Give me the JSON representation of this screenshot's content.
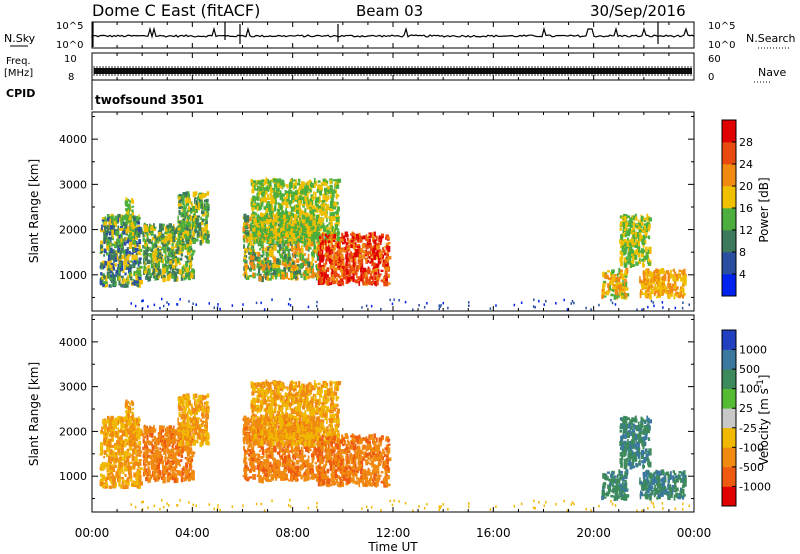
{
  "header": {
    "title": "Dome C East (fitACF)",
    "beam": "Beam 03",
    "date": "30/Sep/2016"
  },
  "side_labels": {
    "nsky": "N.Sky",
    "nsearch": "N.Search",
    "freq_line1": "Freq.",
    "freq_line2": "[MHz]",
    "nave": "Nave",
    "cpid": "CPID",
    "cpid_value": "twofsound 3501"
  },
  "noise_axis": {
    "top": "10^5",
    "bottom": "10^0"
  },
  "freq_axis": {
    "top": "10",
    "bottom": "8"
  },
  "nave_axis": {
    "top": "60",
    "bottom": "0"
  },
  "x_axis": {
    "label": "Time UT",
    "ticks": [
      "00:00",
      "04:00",
      "08:00",
      "12:00",
      "16:00",
      "20:00",
      "00:00"
    ],
    "tick_hours": [
      0,
      4,
      8,
      12,
      16,
      20,
      24
    ],
    "range": [
      0,
      24
    ]
  },
  "y_axis": {
    "label": "Slant Range [km]",
    "ticks": [
      "1000",
      "2000",
      "3000",
      "4000"
    ],
    "tick_values": [
      1000,
      2000,
      3000,
      4000
    ],
    "range": [
      200,
      4600
    ]
  },
  "power_scale": {
    "label": "Power [dB]",
    "ticks": [
      "4",
      "8",
      "12",
      "16",
      "20",
      "24",
      "28"
    ],
    "colors": [
      "#0022ee",
      "#2a4fa0",
      "#3d7a5c",
      "#4cae3c",
      "#f0c000",
      "#f08a10",
      "#e84a10",
      "#e00000"
    ]
  },
  "velocity_scale": {
    "label": "Velocity [m s",
    "label_sup": "-1",
    "label_end": "]",
    "ticks": [
      "1000",
      "500",
      "100",
      "25",
      "-25",
      "-100",
      "-500",
      "-1000"
    ],
    "colors": [
      "#2040c0",
      "#3a78a0",
      "#3d8a5c",
      "#55bb33",
      "#c8c8c8",
      "#f0b800",
      "#f08a10",
      "#ee5a10",
      "#e00000"
    ]
  },
  "chart_data": {
    "type": "heatmap",
    "panels": [
      "power",
      "velocity"
    ],
    "x_units": "hours UT",
    "y_units": "km",
    "echo_regions": [
      {
        "t0": 0.3,
        "t1": 1.9,
        "r0": 750,
        "r1": 2300,
        "power": "8-20 dB",
        "velocity": "-25 to -100 m/s"
      },
      {
        "t0": 1.3,
        "t1": 1.6,
        "r0": 1800,
        "r1": 2700,
        "power": "16-20 dB",
        "velocity": "-25 to -100 m/s"
      },
      {
        "t0": 2.0,
        "t1": 4.0,
        "r0": 900,
        "r1": 2100,
        "power": "12-20 dB",
        "velocity": "-100 to -500 m/s"
      },
      {
        "t0": 3.4,
        "t1": 4.6,
        "r0": 1700,
        "r1": 2800,
        "power": "12-20 dB",
        "velocity": "-25 to -100 m/s"
      },
      {
        "t0": 6.0,
        "t1": 9.0,
        "r0": 900,
        "r1": 2300,
        "power": "12-24 dB",
        "velocity": "-100 to -500 m/s"
      },
      {
        "t0": 6.3,
        "t1": 9.8,
        "r0": 1700,
        "r1": 3100,
        "power": "16-20 dB",
        "velocity": "-25 to -100 m/s"
      },
      {
        "t0": 9.0,
        "t1": 11.8,
        "r0": 800,
        "r1": 1900,
        "power": "24-28 dB",
        "velocity": "-100 to -500 m/s"
      },
      {
        "t0": 20.3,
        "t1": 21.3,
        "r0": 500,
        "r1": 1100,
        "power": "16-24 dB",
        "velocity": "100-500 m/s"
      },
      {
        "t0": 21.0,
        "t1": 22.2,
        "r0": 1200,
        "r1": 2300,
        "power": "16-20 dB",
        "velocity": "100-500 m/s"
      },
      {
        "t0": 21.8,
        "t1": 23.6,
        "r0": 500,
        "r1": 1100,
        "power": "20-24 dB",
        "velocity": "100-500 m/s"
      }
    ],
    "grid": false,
    "legend_position": "right"
  }
}
